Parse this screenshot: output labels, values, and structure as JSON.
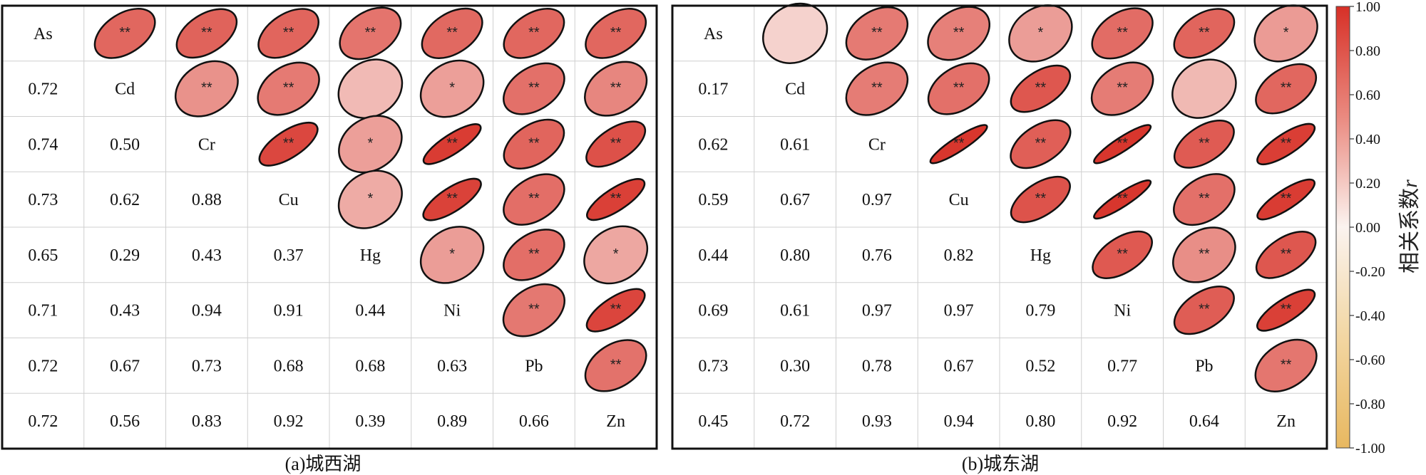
{
  "chart_data": [
    {
      "type": "heatmap",
      "caption": "(a)城西湖",
      "variables": [
        "As",
        "Cd",
        "Cr",
        "Cu",
        "Hg",
        "Ni",
        "Pb",
        "Zn"
      ],
      "matrix": [
        [
          1,
          0.72,
          0.74,
          0.73,
          0.65,
          0.71,
          0.72,
          0.72
        ],
        [
          0.72,
          1,
          0.5,
          0.62,
          0.29,
          0.43,
          0.67,
          0.56
        ],
        [
          0.74,
          0.5,
          1,
          0.88,
          0.43,
          0.94,
          0.73,
          0.83
        ],
        [
          0.73,
          0.62,
          0.88,
          1,
          0.37,
          0.91,
          0.68,
          0.92
        ],
        [
          0.65,
          0.29,
          0.43,
          0.37,
          1,
          0.44,
          0.68,
          0.39
        ],
        [
          0.71,
          0.43,
          0.94,
          0.91,
          0.44,
          1,
          0.63,
          0.89
        ],
        [
          0.72,
          0.67,
          0.73,
          0.68,
          0.68,
          0.63,
          1,
          0.66
        ],
        [
          0.72,
          0.56,
          0.83,
          0.92,
          0.39,
          0.89,
          0.66,
          1
        ]
      ],
      "significance": [
        [
          "",
          "**",
          "**",
          "**",
          "**",
          "**",
          "**",
          "**"
        ],
        [
          "**",
          "",
          "**",
          "**",
          "",
          "*",
          "**",
          "**"
        ],
        [
          "**",
          "**",
          "",
          "**",
          "*",
          "**",
          "**",
          "**"
        ],
        [
          "**",
          "**",
          "**",
          "",
          "*",
          "**",
          "**",
          "**"
        ],
        [
          "**",
          "",
          "*",
          "*",
          "",
          "*",
          "**",
          "*"
        ],
        [
          "**",
          "*",
          "**",
          "**",
          "*",
          "",
          "**",
          "**"
        ],
        [
          "**",
          "**",
          "**",
          "**",
          "**",
          "**",
          "",
          "**"
        ],
        [
          "**",
          "**",
          "**",
          "**",
          "*",
          "**",
          "**",
          ""
        ]
      ],
      "lower_labels": [
        [
          "0.72"
        ],
        [
          "0.74",
          "0.50"
        ],
        [
          "0.73",
          "0.62",
          "0.88"
        ],
        [
          "0.65",
          "0.29",
          "0.43",
          "0.37"
        ],
        [
          "0.71",
          "0.43",
          "0.94",
          "0.91",
          "0.44"
        ],
        [
          "0.72",
          "0.67",
          "0.73",
          "0.68",
          "0.68",
          "0.63"
        ],
        [
          "0.72",
          "0.56",
          "0.83",
          "0.92",
          "0.39",
          "0.89",
          "0.66"
        ]
      ]
    },
    {
      "type": "heatmap",
      "caption": "(b)城东湖",
      "variables": [
        "As",
        "Cd",
        "Cr",
        "Cu",
        "Hg",
        "Ni",
        "Pb",
        "Zn"
      ],
      "matrix": [
        [
          1,
          0.17,
          0.62,
          0.59,
          0.44,
          0.69,
          0.73,
          0.45
        ],
        [
          0.17,
          1,
          0.61,
          0.67,
          0.8,
          0.61,
          0.3,
          0.72
        ],
        [
          0.62,
          0.61,
          1,
          0.97,
          0.76,
          0.97,
          0.78,
          0.93
        ],
        [
          0.59,
          0.67,
          0.97,
          1,
          0.82,
          0.97,
          0.67,
          0.94
        ],
        [
          0.44,
          0.8,
          0.76,
          0.82,
          1,
          0.79,
          0.52,
          0.8
        ],
        [
          0.69,
          0.61,
          0.97,
          0.97,
          0.79,
          1,
          0.77,
          0.92
        ],
        [
          0.73,
          0.3,
          0.78,
          0.67,
          0.52,
          0.77,
          1,
          0.64
        ],
        [
          0.45,
          0.72,
          0.93,
          0.94,
          0.8,
          0.92,
          0.64,
          1
        ]
      ],
      "significance": [
        [
          "",
          "",
          "**",
          "**",
          "*",
          "**",
          "**",
          "*"
        ],
        [
          "",
          "",
          "**",
          "**",
          "**",
          "**",
          "",
          "**"
        ],
        [
          "**",
          "**",
          "",
          "**",
          "**",
          "**",
          "**",
          "**"
        ],
        [
          "**",
          "**",
          "**",
          "",
          "**",
          "**",
          "**",
          "**"
        ],
        [
          "*",
          "**",
          "**",
          "**",
          "",
          "**",
          "**",
          "**"
        ],
        [
          "**",
          "**",
          "**",
          "**",
          "**",
          "",
          "**",
          "**"
        ],
        [
          "**",
          "",
          "**",
          "**",
          "**",
          "**",
          "",
          "**"
        ],
        [
          "*",
          "**",
          "**",
          "**",
          "**",
          "**",
          "**",
          ""
        ]
      ],
      "lower_labels": [
        [
          "0.17"
        ],
        [
          "0.62",
          "0.61"
        ],
        [
          "0.59",
          "0.67",
          "0.97"
        ],
        [
          "0.44",
          "0.80",
          "0.76",
          "0.82"
        ],
        [
          "0.69",
          "0.61",
          "0.97",
          "0.97",
          "0.79"
        ],
        [
          "0.73",
          "0.30",
          "0.78",
          "0.67",
          "0.52",
          "0.77"
        ],
        [
          "0.45",
          "0.72",
          "0.93",
          "0.94",
          "0.80",
          "0.92",
          "0.64"
        ]
      ]
    }
  ],
  "colorbar": {
    "label": "相关系数",
    "label_italic": "r",
    "ticks": [
      "1.00",
      "0.80",
      "0.60",
      "0.40",
      "0.20",
      "0.00",
      "-0.20",
      "-0.40",
      "-0.60",
      "-0.80",
      "-1.00"
    ],
    "range": [
      -1,
      1
    ],
    "colors": {
      "positive_max": "#d73027",
      "zero": "#fbf3ef",
      "negative_max": "#e8b860"
    }
  }
}
